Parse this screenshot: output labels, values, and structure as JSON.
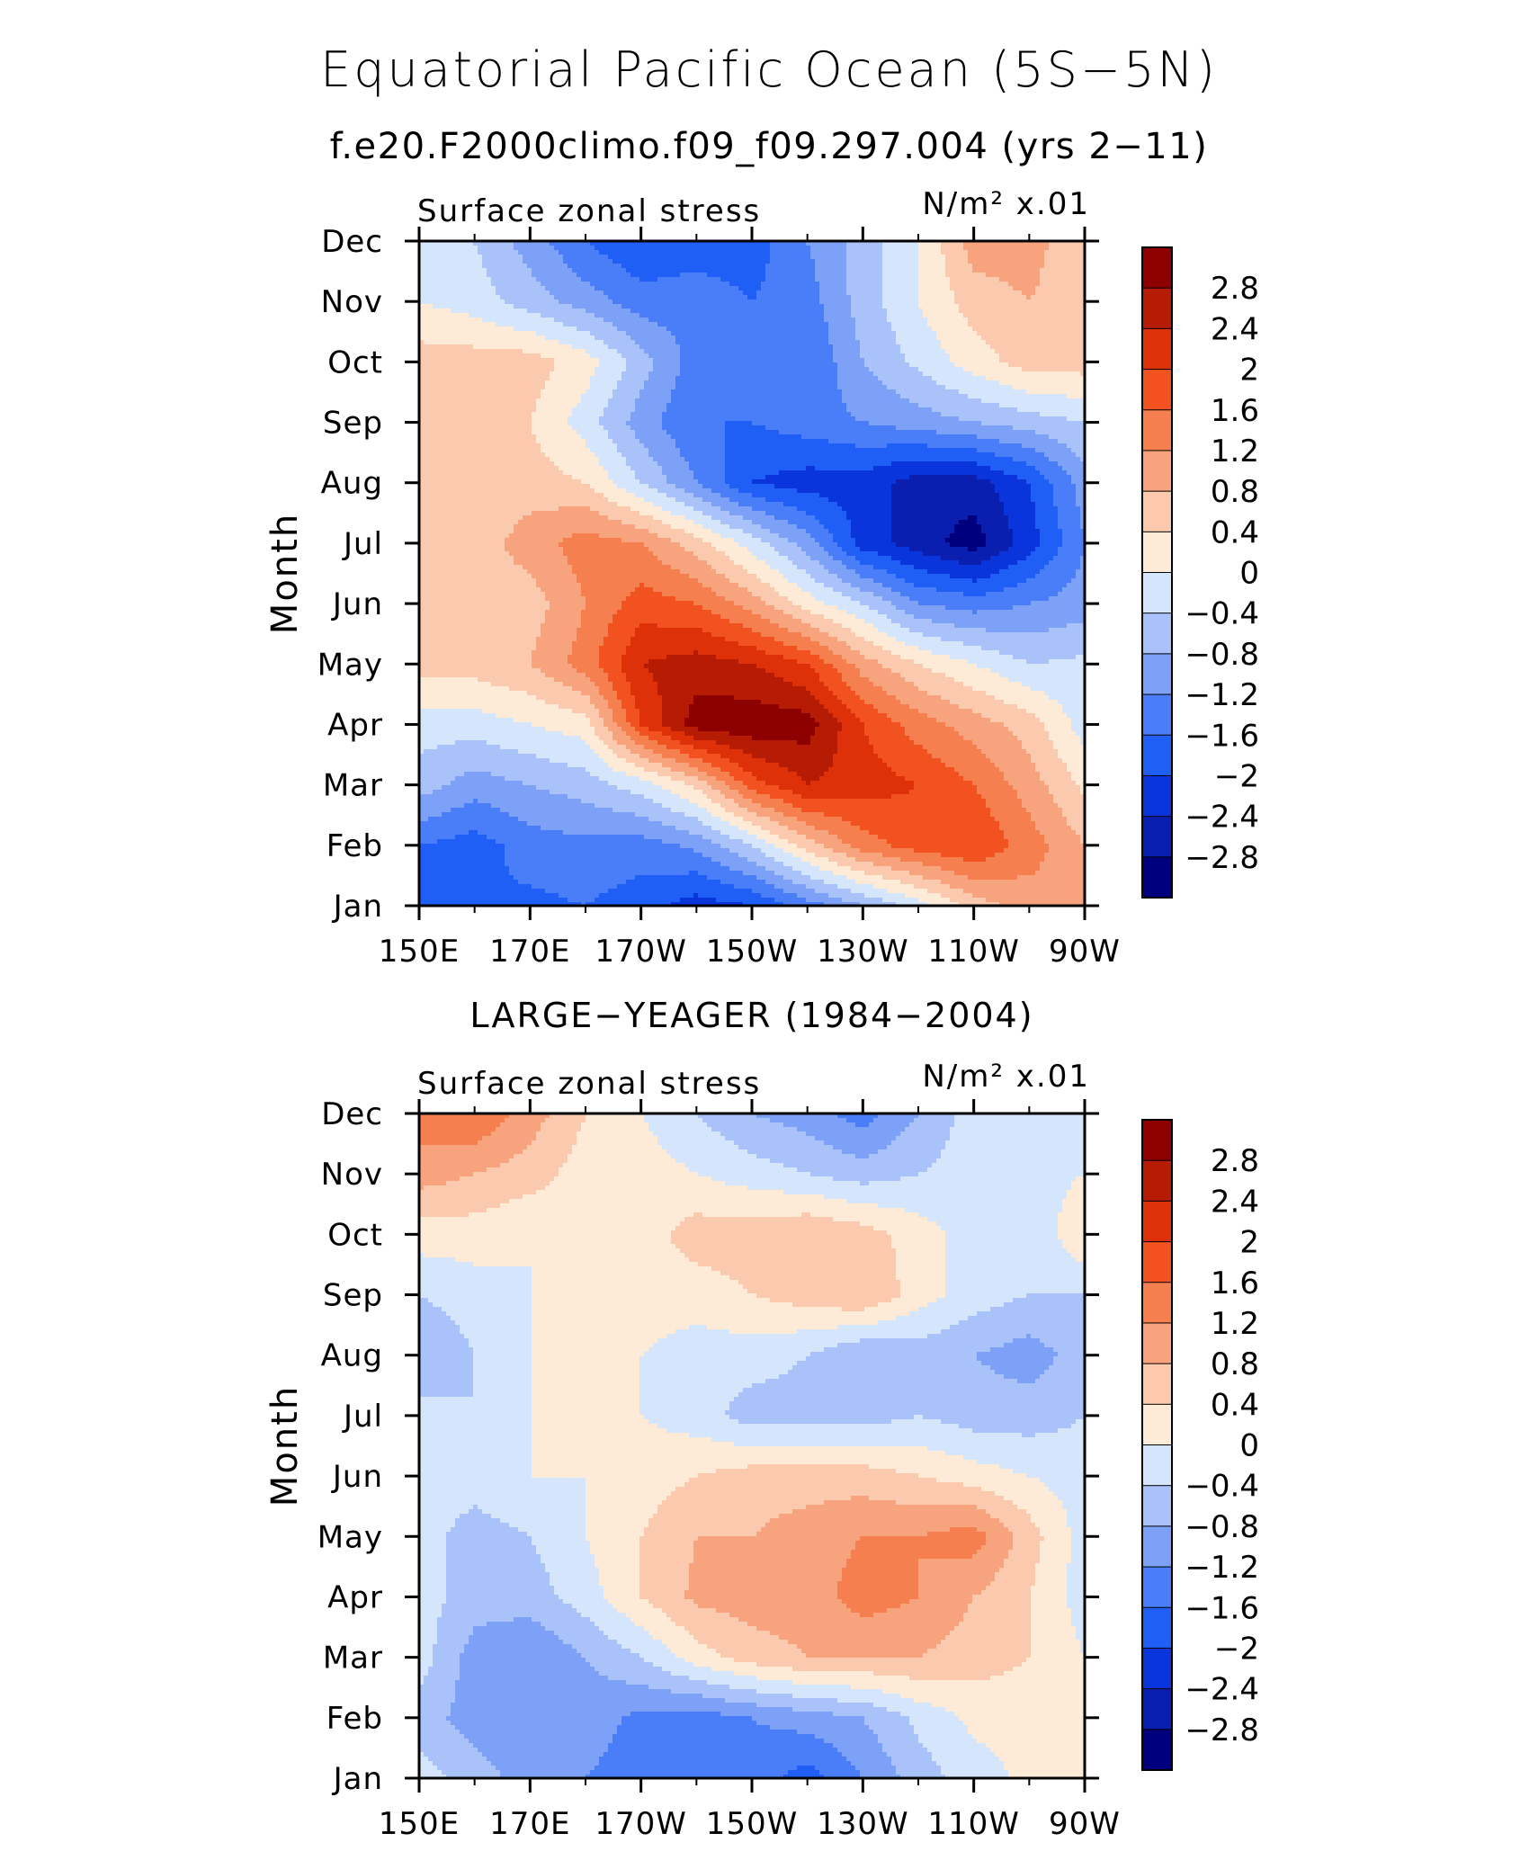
{
  "title": "Equatorial Pacific Ocean (5S−5N)",
  "subtitle": "f.e20.F2000climo.f09_f09.297.004 (yrs 2−11)",
  "colors": [
    "#00007f",
    "#0a1fb0",
    "#0b35dc",
    "#1f5ff5",
    "#4a7ef8",
    "#7ea1f8",
    "#a9c2fa",
    "#d4e5fc",
    "#fdebd8",
    "#fbcaae",
    "#f7a47e",
    "#f57f4e",
    "#f1521f",
    "#de3009",
    "#b51c03",
    "#8c0000"
  ],
  "chart_data": [
    {
      "type": "contour",
      "panel_title": "",
      "left_label": "Surface zonal stress",
      "units_label": "N/m² x.01",
      "ylabel": "Month",
      "xlabel": "",
      "x_ticks": [
        "150E",
        "170E",
        "170W",
        "150W",
        "130W",
        "110W",
        "90W"
      ],
      "x_values": [
        150,
        170,
        190,
        210,
        230,
        250,
        270
      ],
      "xlim": [
        150,
        270
      ],
      "y_ticks": [
        "Jan",
        "Feb",
        "Mar",
        "Apr",
        "May",
        "Jun",
        "Jul",
        "Aug",
        "Sep",
        "Oct",
        "Nov",
        "Dec"
      ],
      "contour_levels": [
        -2.8,
        -2.4,
        -2,
        -1.6,
        -1.2,
        -0.8,
        -0.4,
        0,
        0.4,
        0.8,
        1.2,
        1.6,
        2,
        2.4,
        2.8
      ],
      "colorbar_labels": [
        "2.8",
        "2.4",
        "2",
        "1.6",
        "1.2",
        "0.8",
        "0.4",
        "0",
        "−0.4",
        "−0.8",
        "−1.2",
        "−1.6",
        "−2",
        "−2.4",
        "−2.8"
      ],
      "grid": [
        [
          -1.6,
          -1.6,
          -1.7,
          -1.6,
          -1.8,
          -2.2,
          -2.0,
          -1.4,
          -0.8,
          -0.2,
          0.6,
          1.0,
          1.2
        ],
        [
          -1.6,
          -1.8,
          -1.4,
          -1.3,
          -1.4,
          -1.1,
          -0.4,
          0.6,
          1.4,
          1.8,
          2.0,
          1.4,
          0.8
        ],
        [
          -0.6,
          -1.0,
          -0.8,
          -0.6,
          -0.2,
          0.5,
          1.8,
          2.4,
          2.2,
          2.0,
          1.6,
          1.0,
          0.3
        ],
        [
          -0.2,
          -0.2,
          0.0,
          0.2,
          2.0,
          3.0,
          3.1,
          3.0,
          2.0,
          1.4,
          1.0,
          0.6,
          -0.2
        ],
        [
          0.6,
          0.6,
          0.8,
          1.4,
          2.4,
          2.6,
          2.4,
          2.0,
          1.0,
          0.4,
          0.0,
          -0.4,
          -0.3
        ],
        [
          0.6,
          0.6,
          0.6,
          1.2,
          1.8,
          1.6,
          1.0,
          0.2,
          -0.4,
          -1.2,
          -1.4,
          -1.2,
          -1.0
        ],
        [
          0.6,
          0.6,
          1.0,
          1.4,
          1.2,
          0.6,
          -0.2,
          -1.0,
          -2.2,
          -2.6,
          -3.0,
          -2.2,
          -1.2
        ],
        [
          0.6,
          0.4,
          0.6,
          0.4,
          -0.4,
          -1.2,
          -2.0,
          -2.2,
          -2.2,
          -2.6,
          -2.6,
          -2.0,
          -1.0
        ],
        [
          0.4,
          0.4,
          0.4,
          -0.2,
          -1.0,
          -1.6,
          -1.6,
          -1.4,
          -1.2,
          -1.0,
          -0.8,
          -0.6,
          -0.4
        ],
        [
          0.6,
          0.6,
          0.6,
          0.2,
          -0.6,
          -1.4,
          -1.6,
          -1.6,
          -0.8,
          -0.3,
          0.2,
          0.6,
          0.6
        ],
        [
          0.0,
          -0.2,
          -0.6,
          -1.0,
          -1.4,
          -1.4,
          -1.6,
          -1.4,
          -0.6,
          0.0,
          0.6,
          0.8,
          0.5
        ],
        [
          -0.2,
          -0.4,
          -1.0,
          -1.6,
          -2.0,
          -1.8,
          -1.8,
          -1.2,
          -0.6,
          0.0,
          1.0,
          1.0,
          0.4
        ]
      ]
    },
    {
      "type": "contour",
      "panel_title": "LARGE−YEAGER (1984−2004)",
      "left_label": "Surface zonal stress",
      "units_label": "N/m² x.01",
      "ylabel": "Month",
      "xlabel": "",
      "x_ticks": [
        "150E",
        "170E",
        "170W",
        "150W",
        "130W",
        "110W",
        "90W"
      ],
      "x_values": [
        150,
        170,
        190,
        210,
        230,
        250,
        270
      ],
      "xlim": [
        150,
        270
      ],
      "y_ticks": [
        "Jan",
        "Feb",
        "Mar",
        "Apr",
        "May",
        "Jun",
        "Jul",
        "Aug",
        "Sep",
        "Oct",
        "Nov",
        "Dec"
      ],
      "contour_levels": [
        -2.8,
        -2.4,
        -2,
        -1.6,
        -1.2,
        -0.8,
        -0.4,
        0,
        0.4,
        0.8,
        1.2,
        1.6,
        2,
        2.4,
        2.8
      ],
      "colorbar_labels": [
        "2.8",
        "2.4",
        "2",
        "1.6",
        "1.2",
        "0.8",
        "0.4",
        "0",
        "−0.4",
        "−0.8",
        "−1.2",
        "−1.6",
        "−2",
        "−2.4",
        "−2.8"
      ],
      "grid": [
        [
          -0.2,
          -0.6,
          -1.0,
          -1.2,
          -1.4,
          -1.6,
          -1.4,
          -1.8,
          -1.2,
          -0.6,
          -0.2,
          0.1,
          0.1
        ],
        [
          -0.6,
          -1.0,
          -1.2,
          -1.0,
          -1.3,
          -1.4,
          -1.2,
          -1.0,
          -0.8,
          -0.3,
          0.1,
          0.2,
          0.1
        ],
        [
          -0.2,
          -1.0,
          -1.2,
          -0.8,
          -0.4,
          0.2,
          0.6,
          0.8,
          0.8,
          0.8,
          0.6,
          0.4,
          0.0
        ],
        [
          -0.2,
          -0.6,
          -0.6,
          -0.2,
          0.4,
          0.9,
          1.0,
          1.0,
          1.4,
          1.2,
          0.8,
          0.4,
          -0.2
        ],
        [
          -0.2,
          -0.6,
          -0.4,
          0.0,
          0.4,
          0.8,
          0.8,
          1.0,
          1.2,
          1.2,
          1.4,
          0.6,
          -0.2
        ],
        [
          -0.2,
          -0.2,
          0.0,
          0.0,
          0.2,
          0.4,
          0.6,
          0.6,
          0.6,
          0.4,
          0.2,
          0.0,
          -0.2
        ],
        [
          -0.2,
          -0.4,
          0.0,
          0.2,
          0.0,
          -0.2,
          -0.6,
          -0.6,
          -0.6,
          -0.4,
          -0.6,
          -0.6,
          -0.4
        ],
        [
          -0.8,
          -0.4,
          0.0,
          0.2,
          0.0,
          -0.2,
          -0.2,
          -0.4,
          -0.8,
          -0.6,
          -0.8,
          -1.0,
          -0.6
        ],
        [
          -0.4,
          -0.2,
          0.0,
          0.2,
          0.2,
          0.2,
          0.4,
          0.6,
          0.8,
          0.2,
          -0.2,
          -0.4,
          -0.4
        ],
        [
          0.2,
          0.2,
          0.0,
          0.2,
          0.2,
          0.6,
          0.6,
          0.8,
          0.6,
          0.2,
          -0.2,
          -0.4,
          0.4
        ],
        [
          1.0,
          0.8,
          0.6,
          0.2,
          0.2,
          0.0,
          -0.2,
          -0.4,
          -0.6,
          -0.4,
          -0.2,
          -0.2,
          0.0
        ],
        [
          1.4,
          1.6,
          1.0,
          0.4,
          0.0,
          -0.4,
          -0.8,
          -1.0,
          -1.4,
          -0.8,
          -0.2,
          0.0,
          0.0
        ]
      ]
    }
  ]
}
